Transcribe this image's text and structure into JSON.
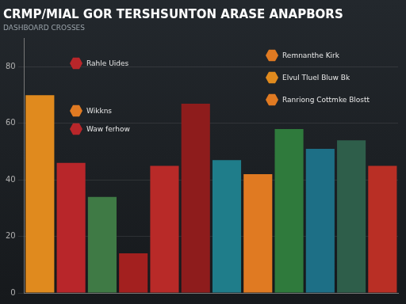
{
  "chart_data": {
    "type": "bar",
    "title": "CRMP/MIAL GOR TERSHSUNTON ARASE ANAPBORS",
    "subtitle": "DASHBOARD CROSSES",
    "categories": [
      null,
      null,
      null,
      null,
      null,
      null,
      null,
      null,
      null,
      null,
      null,
      null
    ],
    "values": [
      70,
      46,
      34,
      14,
      45,
      67,
      47,
      42,
      58,
      51,
      54,
      45
    ],
    "colors": [
      "#e08a1e",
      "#b8262a",
      "#3f7a45",
      "#a3201f",
      "#b82a28",
      "#8e1c1c",
      "#1f7d8a",
      "#e07a22",
      "#2f7a3c",
      "#1d6f86",
      "#2e5e4a",
      "#b92f25"
    ],
    "ylim": [
      0,
      90
    ],
    "yticks": [
      0,
      20,
      40,
      60,
      80
    ],
    "grid": true,
    "tick_labels": "y",
    "annotations": [
      "Rahle Uides",
      "Wikkns",
      "Waw ferhow",
      "Remnanthe Kirk",
      "Elvul Tluel Bluw Bk",
      "Ranriong Cottmke Blostt"
    ]
  }
}
